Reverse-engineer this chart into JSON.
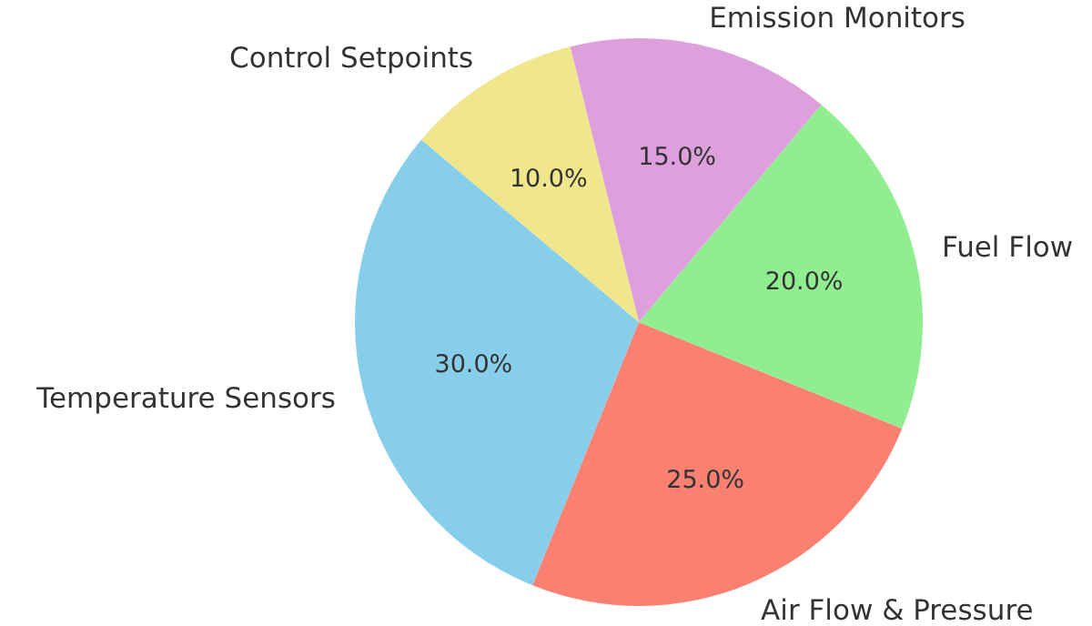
{
  "chart_data": {
    "type": "pie",
    "categories": [
      "Temperature Sensors",
      "Air Flow & Pressure",
      "Fuel Flow",
      "Emission Monitors",
      "Control Setpoints"
    ],
    "values": [
      30,
      25,
      20,
      15,
      10
    ],
    "colors": [
      "#87ceeb",
      "#fa8072",
      "#90ee90",
      "#dda0dd",
      "#f0e68c"
    ],
    "value_labels": [
      "30.0%",
      "25.0%",
      "20.0%",
      "15.0%",
      "10.0%"
    ]
  }
}
